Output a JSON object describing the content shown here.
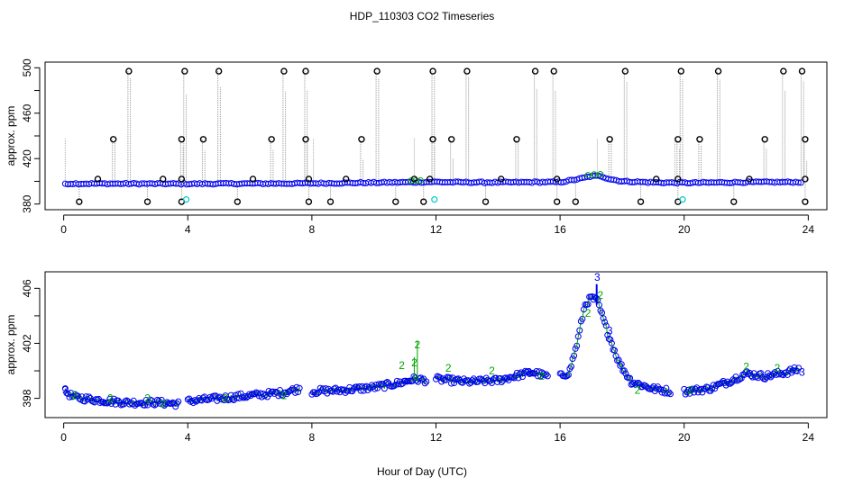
{
  "chart_data": [
    {
      "type": "scatter",
      "panel": "top",
      "title": "HDP_110303  CO2 Timeseries",
      "ylabel": "approx. ppm",
      "xlim": [
        -0.6,
        24.6
      ],
      "ylim": [
        375,
        505
      ],
      "x_ticks": [
        0,
        4,
        8,
        12,
        16,
        20,
        24
      ],
      "y_ticks": [
        380,
        420,
        460,
        500
      ],
      "baseline": [
        [
          0.0,
          398
        ],
        [
          4.0,
          397.8
        ],
        [
          8.0,
          398.2
        ],
        [
          11.3,
          399.2
        ],
        [
          11.9,
          399.5
        ],
        [
          12.3,
          399.2
        ],
        [
          14.0,
          399.0
        ],
        [
          15.5,
          399.3
        ],
        [
          16.0,
          399.2
        ],
        [
          16.6,
          402
        ],
        [
          17.0,
          404.5
        ],
        [
          17.3,
          404.8
        ],
        [
          17.6,
          402
        ],
        [
          18.0,
          400.0
        ],
        [
          19.0,
          399.0
        ],
        [
          20.0,
          398.6
        ],
        [
          22.0,
          399.2
        ],
        [
          23.8,
          399.3
        ]
      ],
      "spikes_high": [
        2.1,
        3.9,
        5.0,
        7.1,
        7.8,
        10.1,
        11.9,
        13.0,
        15.2,
        15.8,
        18.1,
        19.9,
        21.1,
        23.2,
        23.8
      ],
      "spikes_mid": [
        1.6,
        3.8,
        4.5,
        6.7,
        7.8,
        9.6,
        11.9,
        12.5,
        14.6,
        17.6,
        19.8,
        20.5,
        22.6,
        23.9
      ],
      "spikes_low_markers": [
        0.5,
        2.7,
        3.8,
        5.6,
        7.9,
        8.6,
        10.7,
        11.6,
        13.6,
        15.9,
        16.5,
        18.6,
        19.8,
        21.6,
        23.9
      ],
      "small_markers": [
        1.1,
        3.2,
        3.8,
        6.1,
        7.9,
        9.1,
        11.3,
        11.8,
        14.1,
        15.9,
        19.1,
        19.8,
        22.1,
        23.9
      ],
      "cyan_points": [
        [
          3.95,
          384
        ],
        [
          11.95,
          384
        ],
        [
          19.95,
          384
        ]
      ]
    },
    {
      "type": "scatter",
      "panel": "bottom",
      "xlabel": "Hour of Day (UTC)",
      "ylabel": "approx. ppm",
      "xlim": [
        -0.6,
        24.6
      ],
      "ylim": [
        396.6,
        407.2
      ],
      "x_ticks": [
        0,
        4,
        8,
        12,
        16,
        20,
        24
      ],
      "y_ticks": [
        398,
        402,
        406
      ],
      "segments": [
        [
          [
            0.05,
            398.5
          ],
          [
            0.3,
            398.1
          ],
          [
            1.0,
            397.9
          ],
          [
            2.0,
            397.7
          ],
          [
            3.0,
            397.7
          ],
          [
            3.7,
            397.6
          ]
        ],
        [
          [
            4.0,
            397.8
          ],
          [
            5.0,
            398.0
          ],
          [
            6.0,
            398.2
          ],
          [
            7.0,
            398.4
          ],
          [
            7.6,
            398.7
          ]
        ],
        [
          [
            8.0,
            398.5
          ],
          [
            9.0,
            398.6
          ],
          [
            10.0,
            398.8
          ],
          [
            10.8,
            399.1
          ],
          [
            11.3,
            399.4
          ],
          [
            11.7,
            399.3
          ]
        ],
        [
          [
            12.0,
            399.4
          ],
          [
            13.0,
            399.2
          ],
          [
            14.0,
            399.3
          ],
          [
            14.5,
            399.6
          ],
          [
            15.1,
            399.9
          ],
          [
            15.6,
            399.6
          ]
        ],
        [
          [
            16.0,
            399.6
          ],
          [
            16.3,
            399.9
          ],
          [
            16.55,
            402.0
          ],
          [
            16.8,
            404.8
          ],
          [
            17.0,
            405.3
          ],
          [
            17.2,
            405.1
          ],
          [
            17.5,
            403.0
          ],
          [
            17.9,
            400.6
          ],
          [
            18.3,
            399.2
          ],
          [
            19.0,
            398.7
          ],
          [
            19.6,
            398.5
          ]
        ],
        [
          [
            20.0,
            398.5
          ],
          [
            20.8,
            398.7
          ],
          [
            21.4,
            399.2
          ],
          [
            22.0,
            399.8
          ],
          [
            22.6,
            399.6
          ],
          [
            23.3,
            399.9
          ],
          [
            23.7,
            400.1
          ]
        ]
      ],
      "labels_2": [
        [
          0.35,
          398.2
        ],
        [
          1.5,
          398.0
        ],
        [
          2.7,
          398.0
        ],
        [
          3.2,
          397.6
        ],
        [
          5.2,
          398.0
        ],
        [
          7.1,
          398.2
        ],
        [
          10.9,
          400.4
        ],
        [
          11.3,
          400.6
        ],
        [
          11.4,
          401.9
        ],
        [
          12.4,
          400.2
        ],
        [
          13.8,
          400.0
        ],
        [
          15.4,
          399.6
        ],
        [
          16.9,
          404.2
        ],
        [
          17.3,
          405.5
        ],
        [
          18.5,
          398.6
        ],
        [
          20.2,
          398.6
        ],
        [
          22.0,
          400.3
        ],
        [
          23.0,
          400.2
        ]
      ],
      "labels_3": [
        [
          0.05,
          398.6
        ],
        [
          15.0,
          399.9
        ],
        [
          17.2,
          406.8
        ],
        [
          17.6,
          402.9
        ],
        [
          23.8,
          399.9
        ]
      ]
    }
  ]
}
